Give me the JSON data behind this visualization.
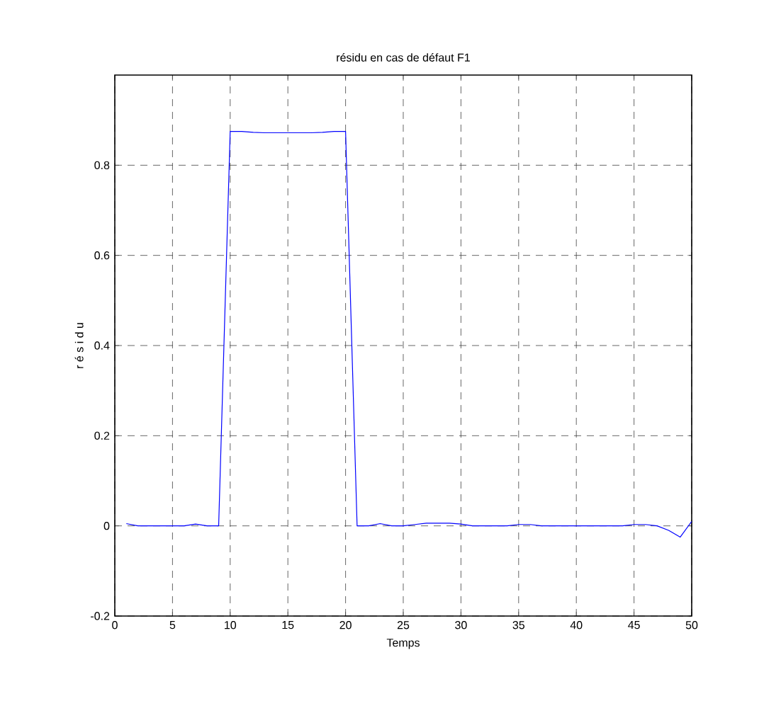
{
  "chart_data": {
    "type": "line",
    "title": "résidu en cas de défaut F1",
    "xlabel": "Temps",
    "ylabel": "r é s i d u",
    "x": [
      1,
      2,
      3,
      4,
      5,
      6,
      7,
      8,
      9,
      10,
      11,
      12,
      13,
      14,
      15,
      16,
      17,
      18,
      19,
      20,
      21,
      22,
      23,
      24,
      25,
      26,
      27,
      28,
      29,
      30,
      31,
      32,
      33,
      34,
      35,
      36,
      37,
      38,
      39,
      40,
      41,
      42,
      43,
      44,
      45,
      46,
      47,
      48,
      49,
      50
    ],
    "series": [
      {
        "color": "#0000ff",
        "values": [
          0.005,
          0,
          0,
          0,
          0,
          0,
          0.004,
          0,
          0,
          0.875,
          0.875,
          0.873,
          0.872,
          0.872,
          0.872,
          0.872,
          0.872,
          0.873,
          0.875,
          0.875,
          0,
          0,
          0.005,
          0,
          0,
          0.003,
          0.006,
          0.006,
          0.006,
          0.004,
          0,
          0,
          0,
          0,
          0.003,
          0.003,
          0,
          0,
          0,
          0,
          0,
          0,
          0,
          0,
          0.003,
          0.003,
          0,
          -0.01,
          -0.025,
          0.01
        ]
      }
    ],
    "xlim": [
      0,
      50
    ],
    "xticks": [
      0,
      5,
      10,
      15,
      20,
      25,
      30,
      35,
      40,
      45,
      50
    ],
    "ylim": [
      -0.2,
      1
    ],
    "yticks": [
      -0.2,
      0,
      0.2,
      0.4,
      0.6,
      0.8
    ],
    "grid": true,
    "marker": "none",
    "line_style": "solid"
  }
}
